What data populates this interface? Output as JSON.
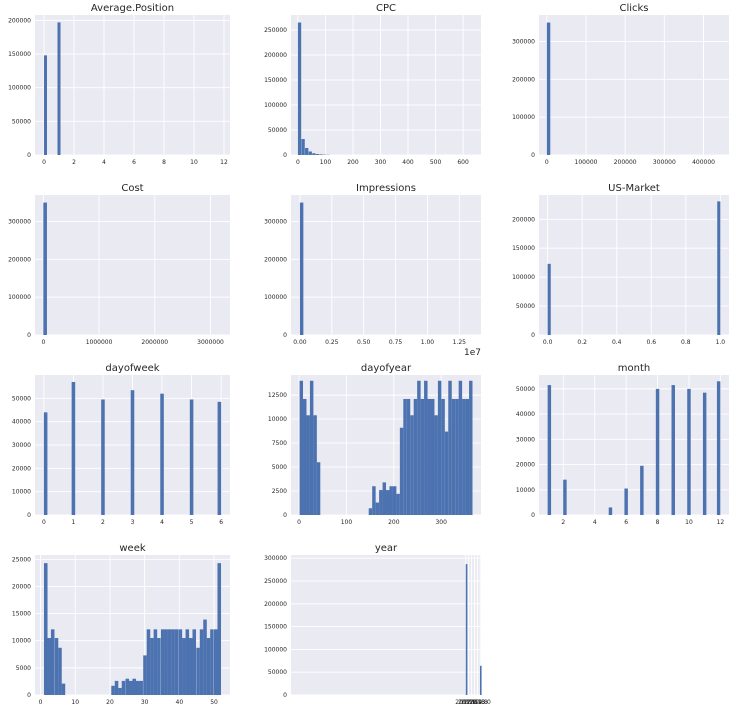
{
  "chart_data": [
    {
      "type": "bar",
      "title": "Average.Position",
      "xlim": [
        -0.6,
        12.4
      ],
      "ylim": [
        0,
        208000
      ],
      "xticks": [
        0,
        2,
        4,
        6,
        8,
        10,
        12
      ],
      "xtick_labels": [
        "0",
        "2",
        "4",
        "6",
        "8",
        "10",
        "12"
      ],
      "yticks": [
        0,
        50000,
        100000,
        150000,
        200000
      ],
      "ytick_labels": [
        "0",
        "50000",
        "100000",
        "150000",
        "200000"
      ],
      "bar_width": 0.2,
      "bars": [
        {
          "x": 0.1,
          "y": 148000
        },
        {
          "x": 1.0,
          "y": 197000
        }
      ]
    },
    {
      "type": "bar",
      "title": "CPC",
      "xlim": [
        -25,
        665
      ],
      "ylim": [
        0,
        280000
      ],
      "xticks": [
        0,
        100,
        200,
        300,
        400,
        500,
        600
      ],
      "xtick_labels": [
        "0",
        "100",
        "200",
        "300",
        "400",
        "500",
        "600"
      ],
      "yticks": [
        0,
        50000,
        100000,
        150000,
        200000,
        250000
      ],
      "ytick_labels": [
        "0",
        "50000",
        "100000",
        "150000",
        "200000",
        "250000"
      ],
      "bar_width": 12,
      "bars": [
        {
          "x": 6,
          "y": 265000
        },
        {
          "x": 19,
          "y": 32000
        },
        {
          "x": 32,
          "y": 14000
        },
        {
          "x": 45,
          "y": 7000
        },
        {
          "x": 58,
          "y": 3500
        },
        {
          "x": 71,
          "y": 2000
        },
        {
          "x": 84,
          "y": 1200
        },
        {
          "x": 97,
          "y": 700
        },
        {
          "x": 110,
          "y": 400
        }
      ]
    },
    {
      "type": "bar",
      "title": "Clicks",
      "xlim": [
        -20000,
        465000
      ],
      "ylim": [
        0,
        370000
      ],
      "xticks": [
        0,
        100000,
        200000,
        300000,
        400000
      ],
      "xtick_labels": [
        "0",
        "100000",
        "200000",
        "300000",
        "400000"
      ],
      "yticks": [
        0,
        100000,
        200000,
        300000
      ],
      "ytick_labels": [
        "0",
        "100000",
        "200000",
        "300000"
      ],
      "bar_width": 8800,
      "bars": [
        {
          "x": 4400,
          "y": 350000
        }
      ]
    },
    {
      "type": "bar",
      "title": "Cost",
      "xlim": [
        -150000,
        3350000
      ],
      "ylim": [
        0,
        370000
      ],
      "xticks": [
        0,
        1000000,
        2000000,
        3000000
      ],
      "xtick_labels": [
        "0",
        "1000000",
        "2000000",
        "3000000"
      ],
      "yticks": [
        0,
        100000,
        200000,
        300000
      ],
      "ytick_labels": [
        "0",
        "100000",
        "200000",
        "300000"
      ],
      "bar_width": 65000,
      "bars": [
        {
          "x": 32000,
          "y": 350000
        }
      ]
    },
    {
      "type": "bar",
      "title": "Impressions",
      "xlim": [
        -0.07,
        1.42
      ],
      "ylim": [
        0,
        370000
      ],
      "xticks": [
        0,
        0.25,
        0.5,
        0.75,
        1.0,
        1.25
      ],
      "xtick_labels": [
        "0.00",
        "0.25",
        "0.50",
        "0.75",
        "1.00",
        "1.25"
      ],
      "yticks": [
        0,
        100000,
        200000,
        300000
      ],
      "ytick_labels": [
        "0",
        "100000",
        "200000",
        "300000"
      ],
      "x_offset_label": "1e7",
      "bar_width": 0.027,
      "bars": [
        {
          "x": 0.0135,
          "y": 350000
        }
      ]
    },
    {
      "type": "bar",
      "title": "US-Market",
      "xlim": [
        -0.05,
        1.05
      ],
      "ylim": [
        0,
        242000
      ],
      "xticks": [
        0,
        0.2,
        0.4,
        0.6,
        0.8,
        1.0
      ],
      "xtick_labels": [
        "0.0",
        "0.2",
        "0.4",
        "0.6",
        "0.8",
        "1.0"
      ],
      "yticks": [
        0,
        50000,
        100000,
        150000,
        200000
      ],
      "ytick_labels": [
        "0",
        "50000",
        "100000",
        "150000",
        "200000"
      ],
      "bar_width": 0.018,
      "bars": [
        {
          "x": 0.009,
          "y": 123000
        },
        {
          "x": 0.991,
          "y": 231000
        }
      ]
    },
    {
      "type": "bar",
      "title": "dayofweek",
      "xlim": [
        -0.3,
        6.3
      ],
      "ylim": [
        0,
        60000
      ],
      "xticks": [
        0,
        1,
        2,
        3,
        4,
        5,
        6
      ],
      "xtick_labels": [
        "0",
        "1",
        "2",
        "3",
        "4",
        "5",
        "6"
      ],
      "yticks": [
        0,
        10000,
        20000,
        30000,
        40000,
        50000
      ],
      "ytick_labels": [
        "0",
        "10000",
        "20000",
        "30000",
        "40000",
        "50000"
      ],
      "bar_width": 0.12,
      "bars": [
        {
          "x": 0.06,
          "y": 44000
        },
        {
          "x": 1.0,
          "y": 57000
        },
        {
          "x": 2.0,
          "y": 49500
        },
        {
          "x": 3.0,
          "y": 53500
        },
        {
          "x": 4.0,
          "y": 52000
        },
        {
          "x": 5.0,
          "y": 49500
        },
        {
          "x": 5.94,
          "y": 48500
        }
      ]
    },
    {
      "type": "bar",
      "title": "dayofyear",
      "xlim": [
        -17,
        384
      ],
      "ylim": [
        0,
        14600
      ],
      "xticks": [
        0,
        100,
        200,
        300
      ],
      "xtick_labels": [
        "0",
        "100",
        "200",
        "300"
      ],
      "yticks": [
        0,
        2500,
        5000,
        7500,
        10000,
        12500
      ],
      "ytick_labels": [
        "0",
        "2500",
        "5000",
        "7500",
        "10000",
        "12500"
      ],
      "bar_width": 7.3,
      "bars": [
        {
          "x": 4.7,
          "y": 14000
        },
        {
          "x": 12,
          "y": 12100
        },
        {
          "x": 19.3,
          "y": 10400
        },
        {
          "x": 26.6,
          "y": 14000
        },
        {
          "x": 33.9,
          "y": 10400
        },
        {
          "x": 41.2,
          "y": 5500
        },
        {
          "x": 150.7,
          "y": 700
        },
        {
          "x": 158,
          "y": 3000
        },
        {
          "x": 165.3,
          "y": 1300
        },
        {
          "x": 172.6,
          "y": 2600
        },
        {
          "x": 179.9,
          "y": 3400
        },
        {
          "x": 187.2,
          "y": 2600
        },
        {
          "x": 194.5,
          "y": 3000
        },
        {
          "x": 201.8,
          "y": 3000
        },
        {
          "x": 209.1,
          "y": 2200
        },
        {
          "x": 216.4,
          "y": 9100
        },
        {
          "x": 223.7,
          "y": 12100
        },
        {
          "x": 231,
          "y": 12100
        },
        {
          "x": 238.3,
          "y": 10400
        },
        {
          "x": 245.6,
          "y": 12100
        },
        {
          "x": 252.9,
          "y": 14000
        },
        {
          "x": 260.2,
          "y": 12100
        },
        {
          "x": 267.5,
          "y": 14000
        },
        {
          "x": 274.8,
          "y": 12100
        },
        {
          "x": 282.1,
          "y": 12100
        },
        {
          "x": 289.4,
          "y": 10400
        },
        {
          "x": 296.7,
          "y": 14000
        },
        {
          "x": 304,
          "y": 12100
        },
        {
          "x": 311.3,
          "y": 8700
        },
        {
          "x": 318.6,
          "y": 14000
        },
        {
          "x": 325.9,
          "y": 12100
        },
        {
          "x": 333.2,
          "y": 12100
        },
        {
          "x": 340.5,
          "y": 14000
        },
        {
          "x": 347.8,
          "y": 12100
        },
        {
          "x": 355.1,
          "y": 12100
        },
        {
          "x": 362.4,
          "y": 14000
        }
      ]
    },
    {
      "type": "bar",
      "title": "month",
      "xlim": [
        0.45,
        12.55
      ],
      "ylim": [
        0,
        55500
      ],
      "xticks": [
        2,
        4,
        6,
        8,
        10,
        12
      ],
      "xtick_labels": [
        "2",
        "4",
        "6",
        "8",
        "10",
        "12"
      ],
      "yticks": [
        0,
        10000,
        20000,
        30000,
        40000,
        50000
      ],
      "ytick_labels": [
        "0",
        "10000",
        "20000",
        "30000",
        "40000",
        "50000"
      ],
      "bar_width": 0.22,
      "bars": [
        {
          "x": 1.11,
          "y": 51500
        },
        {
          "x": 2.1,
          "y": 14000
        },
        {
          "x": 5.0,
          "y": 3000
        },
        {
          "x": 6.0,
          "y": 10500
        },
        {
          "x": 7.0,
          "y": 19500
        },
        {
          "x": 8.0,
          "y": 50000
        },
        {
          "x": 9.0,
          "y": 51500
        },
        {
          "x": 10.0,
          "y": 50000
        },
        {
          "x": 11.0,
          "y": 48500
        },
        {
          "x": 11.89,
          "y": 53000
        }
      ]
    },
    {
      "type": "bar",
      "title": "week",
      "xlim": [
        -1.6,
        54.6
      ],
      "ylim": [
        0,
        25800
      ],
      "xticks": [
        0,
        10,
        20,
        30,
        40,
        50
      ],
      "xtick_labels": [
        "0",
        "10",
        "20",
        "30",
        "40",
        "50"
      ],
      "yticks": [
        0,
        5000,
        10000,
        15000,
        20000,
        25000
      ],
      "ytick_labels": [
        "0",
        "5000",
        "10000",
        "15000",
        "20000",
        "25000"
      ],
      "bar_width": 1.02,
      "bars": [
        {
          "x": 1.5,
          "y": 24300
        },
        {
          "x": 2.5,
          "y": 10500
        },
        {
          "x": 3.5,
          "y": 12100
        },
        {
          "x": 4.6,
          "y": 10500
        },
        {
          "x": 5.6,
          "y": 8700
        },
        {
          "x": 6.6,
          "y": 2100
        },
        {
          "x": 20.9,
          "y": 1700
        },
        {
          "x": 21.9,
          "y": 2600
        },
        {
          "x": 22.9,
          "y": 1300
        },
        {
          "x": 23.9,
          "y": 2600
        },
        {
          "x": 25.0,
          "y": 3000
        },
        {
          "x": 26.0,
          "y": 2600
        },
        {
          "x": 27.0,
          "y": 3000
        },
        {
          "x": 28.0,
          "y": 2600
        },
        {
          "x": 29.0,
          "y": 2600
        },
        {
          "x": 30.1,
          "y": 7300
        },
        {
          "x": 31.1,
          "y": 12100
        },
        {
          "x": 32.1,
          "y": 10500
        },
        {
          "x": 33.1,
          "y": 12100
        },
        {
          "x": 34.1,
          "y": 10500
        },
        {
          "x": 35.2,
          "y": 12100
        },
        {
          "x": 36.2,
          "y": 12100
        },
        {
          "x": 37.2,
          "y": 12100
        },
        {
          "x": 38.2,
          "y": 12100
        },
        {
          "x": 39.2,
          "y": 12100
        },
        {
          "x": 40.3,
          "y": 12100
        },
        {
          "x": 41.3,
          "y": 10500
        },
        {
          "x": 42.3,
          "y": 12100
        },
        {
          "x": 43.3,
          "y": 10500
        },
        {
          "x": 44.3,
          "y": 12100
        },
        {
          "x": 45.4,
          "y": 8700
        },
        {
          "x": 46.4,
          "y": 12100
        },
        {
          "x": 47.4,
          "y": 13900
        },
        {
          "x": 48.4,
          "y": 10500
        },
        {
          "x": 49.4,
          "y": 12100
        },
        {
          "x": 50.5,
          "y": 12100
        },
        {
          "x": 51.5,
          "y": 24300
        }
      ]
    },
    {
      "type": "bar",
      "title": "year",
      "xlim": [
        1999.95,
        2013.05
      ],
      "ylim": [
        0,
        307000
      ],
      "xticks": [
        2012.0,
        2012.2,
        2012.4,
        2012.6,
        2012.8,
        2013.0
      ],
      "xtick_labels": [
        "2012.0",
        "2012.2",
        "2012.4",
        "2012.6",
        "2012.8",
        "2013.0"
      ],
      "yticks": [
        0,
        50000,
        100000,
        150000,
        200000,
        250000,
        300000
      ],
      "ytick_labels": [
        "0",
        "50000",
        "100000",
        "150000",
        "200000",
        "250000",
        "300000"
      ],
      "bar_width": 0.02,
      "bars": [
        {
          "x": 2012.01,
          "y": 287000
        },
        {
          "x": 2012.99,
          "y": 64000
        }
      ]
    }
  ]
}
